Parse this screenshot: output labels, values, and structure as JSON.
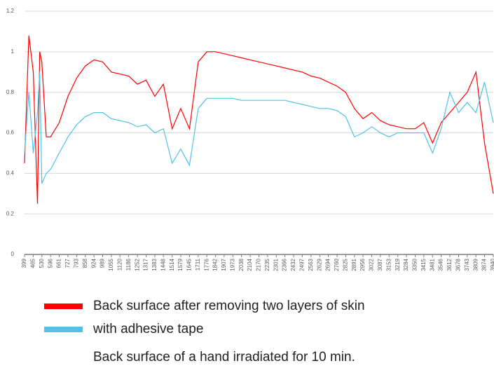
{
  "chart_data": {
    "type": "line",
    "x": [
      399,
      432,
      465,
      497,
      514,
      530,
      563,
      596,
      661,
      727,
      793,
      858,
      924,
      989,
      1055,
      1120,
      1186,
      1252,
      1317,
      1383,
      1448,
      1514,
      1579,
      1645,
      1711,
      1776,
      1842,
      1907,
      1973,
      2038,
      2104,
      2170,
      2235,
      2301,
      2366,
      2432,
      2497,
      2563,
      2629,
      2694,
      2760,
      2825,
      2891,
      2956,
      3022,
      3087,
      3153,
      3219,
      3284,
      3350,
      3415,
      3481,
      3546,
      3612,
      3678,
      3743,
      3809,
      3874,
      3940
    ],
    "series": [
      {
        "name": "Back surface after removing two layers of skin",
        "color": "#ff0000",
        "values": [
          0.45,
          1.08,
          0.9,
          0.25,
          1.0,
          0.95,
          0.58,
          0.58,
          0.65,
          0.78,
          0.87,
          0.93,
          0.96,
          0.95,
          0.9,
          0.89,
          0.88,
          0.84,
          0.86,
          0.78,
          0.84,
          0.62,
          0.72,
          0.62,
          0.95,
          1.0,
          1.0,
          0.99,
          0.98,
          0.97,
          0.96,
          0.95,
          0.94,
          0.93,
          0.92,
          0.91,
          0.9,
          0.88,
          0.87,
          0.85,
          0.83,
          0.8,
          0.72,
          0.67,
          0.7,
          0.66,
          0.64,
          0.63,
          0.62,
          0.62,
          0.65,
          0.55,
          0.65,
          0.7,
          0.75,
          0.8,
          0.9,
          0.55,
          0.3
        ]
      },
      {
        "name": "with adhesive tape",
        "color": "#4fc3e6",
        "values": [
          0.5,
          0.8,
          0.5,
          0.7,
          0.9,
          0.35,
          0.4,
          0.42,
          0.5,
          0.58,
          0.64,
          0.68,
          0.7,
          0.7,
          0.67,
          0.66,
          0.65,
          0.63,
          0.64,
          0.6,
          0.62,
          0.45,
          0.52,
          0.44,
          0.72,
          0.77,
          0.77,
          0.77,
          0.77,
          0.76,
          0.76,
          0.76,
          0.76,
          0.76,
          0.76,
          0.75,
          0.74,
          0.73,
          0.72,
          0.72,
          0.71,
          0.68,
          0.58,
          0.6,
          0.63,
          0.6,
          0.58,
          0.6,
          0.6,
          0.6,
          0.6,
          0.5,
          0.62,
          0.8,
          0.7,
          0.75,
          0.7,
          0.85,
          0.65
        ]
      }
    ],
    "legend_note": "Back surface of a hand irradiated for 10 min.",
    "xlim": [
      399,
      3940
    ],
    "xticks": [
      399,
      465,
      530,
      596,
      661,
      727,
      793,
      858,
      924,
      989,
      1055,
      1120,
      1186,
      1252,
      1317,
      1383,
      1448,
      1514,
      1579,
      1645,
      1711,
      1776,
      1842,
      1907,
      1973,
      2038,
      2104,
      2170,
      2235,
      2301,
      2366,
      2432,
      2497,
      2563,
      2629,
      2694,
      2760,
      2825,
      2891,
      2956,
      3022,
      3087,
      3153,
      3219,
      3284,
      3350,
      3415,
      3481,
      3546,
      3612,
      3678,
      3743,
      3809,
      3874,
      3940
    ],
    "ylim": [
      0,
      1.2
    ],
    "yticks": [
      0,
      0.2,
      0.4,
      0.6,
      0.8,
      1,
      1.2
    ],
    "grid": true
  }
}
